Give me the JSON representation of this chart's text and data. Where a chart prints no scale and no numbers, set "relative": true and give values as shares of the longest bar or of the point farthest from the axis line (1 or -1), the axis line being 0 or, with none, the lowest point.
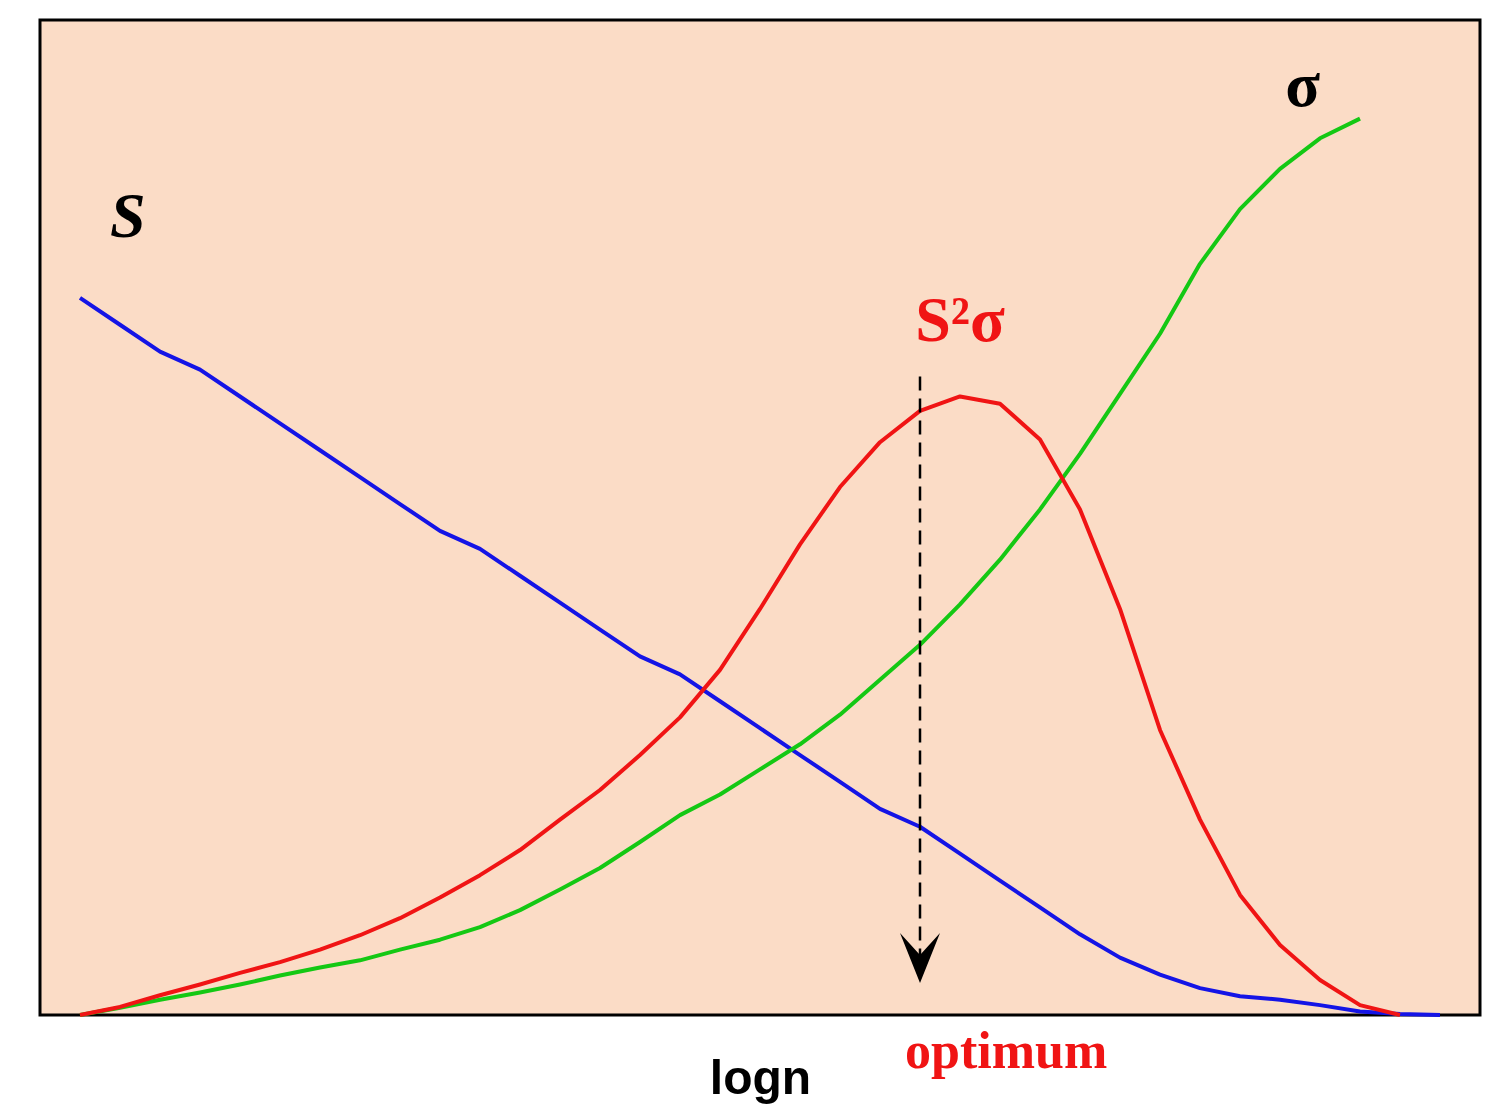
{
  "chart_data": {
    "type": "line",
    "relative": true,
    "xlabel": "logn",
    "categories": [
      null,
      null,
      null,
      null,
      null,
      null,
      null,
      null,
      null,
      null,
      null,
      null,
      null,
      null,
      null,
      null,
      null,
      null,
      null,
      null,
      null,
      null,
      null,
      null,
      null,
      null,
      null,
      null,
      null,
      null,
      null,
      null,
      null,
      null,
      null
    ],
    "series": [
      {
        "name": "S",
        "color": "#1414e6",
        "values": [
          0.8,
          0.77,
          0.74,
          0.72,
          0.69,
          0.66,
          0.63,
          0.6,
          0.57,
          0.54,
          0.52,
          0.49,
          0.46,
          0.43,
          0.4,
          0.38,
          0.35,
          0.32,
          0.29,
          0.26,
          0.23,
          0.21,
          0.18,
          0.15,
          0.12,
          0.09,
          0.064,
          0.045,
          0.03,
          0.021,
          0.017,
          0.011,
          0.004,
          0.001,
          0
        ]
      },
      {
        "name": "σ",
        "color": "#14c814",
        "values": [
          0,
          0.008,
          0.017,
          0.025,
          0.034,
          0.044,
          0.053,
          0.061,
          0.073,
          0.084,
          0.098,
          0.117,
          0.14,
          0.164,
          0.193,
          0.223,
          0.246,
          0.274,
          0.302,
          0.335,
          0.374,
          0.413,
          0.458,
          0.508,
          0.564,
          0.626,
          0.693,
          0.76,
          0.838,
          0.899,
          0.944,
          0.978,
          1.0,
          null,
          null
        ]
      },
      {
        "name": "S²σ",
        "color": "#f01414",
        "values": [
          0,
          0.009,
          0.022,
          0.034,
          0.047,
          0.059,
          0.073,
          0.089,
          0.108,
          0.131,
          0.156,
          0.184,
          0.218,
          0.251,
          0.29,
          0.332,
          0.385,
          0.453,
          0.525,
          0.589,
          0.639,
          0.674,
          0.69,
          0.682,
          0.642,
          0.564,
          0.453,
          0.318,
          0.218,
          0.134,
          0.078,
          0.039,
          0.011,
          0,
          null
        ]
      }
    ],
    "annotations": [
      "optimum"
    ]
  }
}
